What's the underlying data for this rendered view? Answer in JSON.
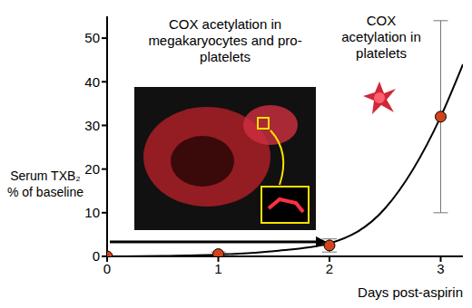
{
  "chart_data": {
    "type": "scatter",
    "xlabel": "Days post-aspirin",
    "ylabel": [
      "Serum TXB₂",
      "% of baseline"
    ],
    "annotations": [
      "COX acetylation in megakaryocytes and pro-platelets",
      "COX acetylation in platelets"
    ],
    "x": [
      0,
      1,
      2,
      3
    ],
    "series": [
      {
        "type": "scatter",
        "color": "#d2421c",
        "marker": "circle",
        "values": [
          0,
          0.5,
          2.5,
          32
        ],
        "errors": [
          0,
          0.5,
          1.5,
          22
        ]
      },
      {
        "type": "line",
        "color": "#000000",
        "x": [
          0,
          0.5,
          1,
          1.5,
          2,
          2.5,
          3,
          3.2
        ],
        "values": [
          0,
          0.1,
          0.4,
          1.2,
          3,
          11,
          32,
          44
        ]
      }
    ],
    "xlim": [
      0,
      3.2
    ],
    "xticks": [
      0,
      1,
      2,
      3
    ],
    "ylim": [
      0,
      55
    ],
    "yticks": [
      0,
      10,
      20,
      30,
      40,
      50
    ]
  }
}
